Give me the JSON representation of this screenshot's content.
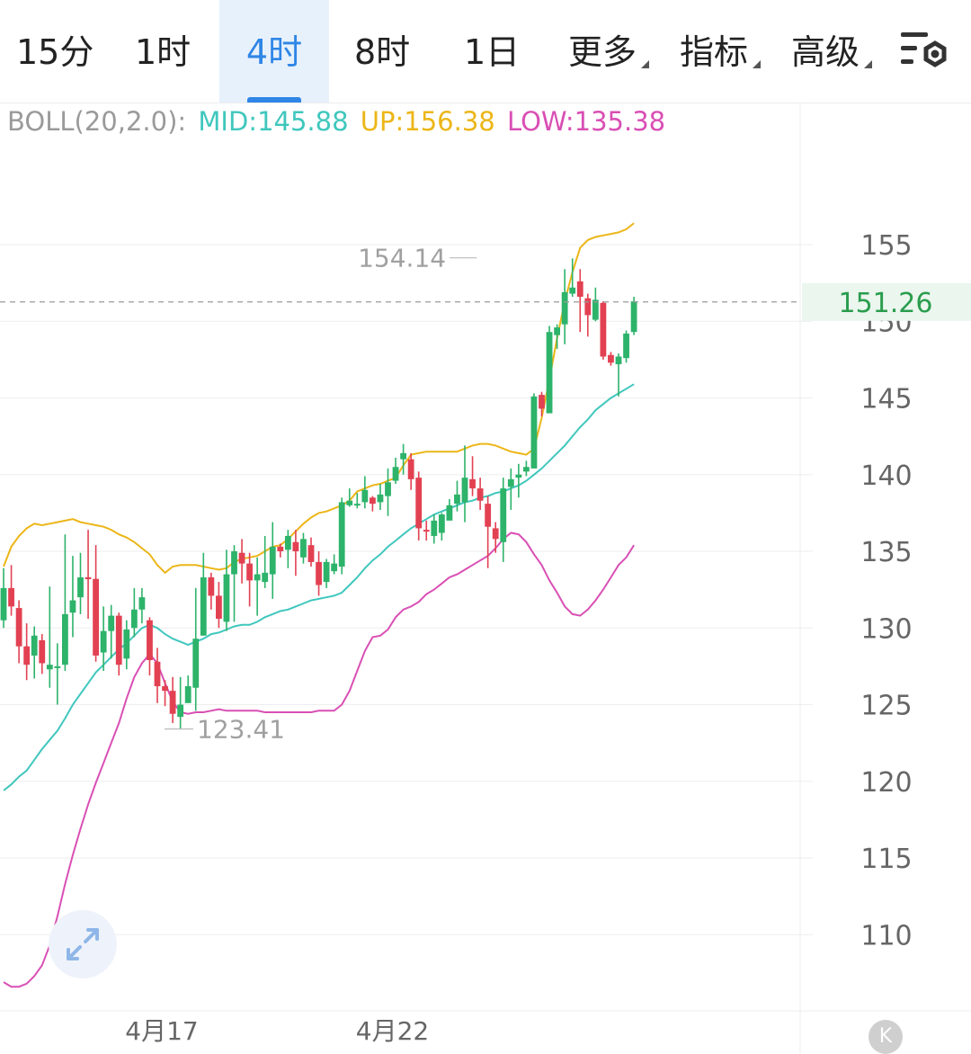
{
  "tabs": [
    {
      "label": "15分",
      "active": false,
      "dropdown": false
    },
    {
      "label": "1时",
      "active": false,
      "dropdown": false
    },
    {
      "label": "4时",
      "active": true,
      "dropdown": false
    },
    {
      "label": "8时",
      "active": false,
      "dropdown": false
    },
    {
      "label": "1日",
      "active": false,
      "dropdown": false
    },
    {
      "label": "更多",
      "active": false,
      "dropdown": true
    },
    {
      "label": "指标",
      "active": false,
      "dropdown": true
    },
    {
      "label": "高级",
      "active": false,
      "dropdown": true
    }
  ],
  "icons": {
    "settings": "chart-settings-icon",
    "expand": "expand-arrows-icon",
    "collapse": "k-circle-icon"
  },
  "indicator": {
    "name": "BOLL(20,2.0):",
    "mid": "MID:145.88",
    "up": "UP:156.38",
    "low": "LOW:135.38"
  },
  "colors": {
    "up_candle": "#2db36a",
    "down_candle": "#e24152",
    "mid": "#3fc7bd",
    "upper": "#ecb618",
    "lower": "#d94fb4",
    "accent": "#2f86e6",
    "price_label": "#2a9d4e"
  },
  "current_price": "151.26",
  "collapse_button": "K",
  "chart_data": {
    "type": "candlestick",
    "timeframe": "4时",
    "ylim": [
      105,
      158
    ],
    "yticks": [
      110,
      115,
      120,
      125,
      130,
      135,
      140,
      145,
      150,
      155
    ],
    "x_labels": [
      {
        "index": 20,
        "label": "4月17"
      },
      {
        "index": 50,
        "label": "4月22"
      }
    ],
    "max_annotation": {
      "index": 62,
      "value": 154.14,
      "label": "154.14"
    },
    "min_annotation": {
      "index": 20,
      "value": 123.41,
      "label": "123.41"
    },
    "last_price": 151.26,
    "candles": [
      [
        130.5,
        132.6,
        133.9,
        130.0
      ],
      [
        132.6,
        131.4,
        134.1,
        130.8
      ],
      [
        131.3,
        128.8,
        131.8,
        127.7
      ],
      [
        128.8,
        127.6,
        130.3,
        126.6
      ],
      [
        128.2,
        129.5,
        130.1,
        126.7
      ],
      [
        129.2,
        127.7,
        129.6,
        127.0
      ],
      [
        127.3,
        127.6,
        132.7,
        126.1
      ],
      [
        127.5,
        127.5,
        129.0,
        125.0
      ],
      [
        127.6,
        130.9,
        136.1,
        127.2
      ],
      [
        131.0,
        131.8,
        134.7,
        129.4
      ],
      [
        132.0,
        133.3,
        134.9,
        130.9
      ],
      [
        133.3,
        133.2,
        136.4,
        130.6
      ],
      [
        133.2,
        128.2,
        135.4,
        127.8
      ],
      [
        128.4,
        129.8,
        131.4,
        127.2
      ],
      [
        129.8,
        130.8,
        131.5,
        128.0
      ],
      [
        130.8,
        127.6,
        131.0,
        126.9
      ],
      [
        128.0,
        129.9,
        130.5,
        127.3
      ],
      [
        130.0,
        131.2,
        132.6,
        129.4
      ],
      [
        131.2,
        132.0,
        132.6,
        130.3
      ],
      [
        130.5,
        127.9,
        130.7,
        126.9
      ],
      [
        127.8,
        126.2,
        128.7,
        125.1
      ],
      [
        126.2,
        125.9,
        126.6,
        124.9
      ],
      [
        125.9,
        124.4,
        126.8,
        123.8
      ],
      [
        124.2,
        125.0,
        126.8,
        123.4
      ],
      [
        125.1,
        126.2,
        126.9,
        125.2
      ],
      [
        126.1,
        129.3,
        132.6,
        124.6
      ],
      [
        129.5,
        133.3,
        134.9,
        129.5
      ],
      [
        133.3,
        132.1,
        133.6,
        131.2
      ],
      [
        132.1,
        130.6,
        133.0,
        130.0
      ],
      [
        130.4,
        133.5,
        135.1,
        129.8
      ],
      [
        133.5,
        135.0,
        135.4,
        130.4
      ],
      [
        134.9,
        134.2,
        135.8,
        132.9
      ],
      [
        134.2,
        133.1,
        134.9,
        131.4
      ],
      [
        133.1,
        133.5,
        134.6,
        130.8
      ],
      [
        133.0,
        133.6,
        136.0,
        132.6
      ],
      [
        133.5,
        135.3,
        136.9,
        131.9
      ],
      [
        135.3,
        135.0,
        135.5,
        134.6
      ],
      [
        135.1,
        136.0,
        136.4,
        133.9
      ],
      [
        135.6,
        135.0,
        136.4,
        133.4
      ],
      [
        134.6,
        135.8,
        136.2,
        134.2
      ],
      [
        135.4,
        134.3,
        135.9,
        134.0
      ],
      [
        134.3,
        132.8,
        135.0,
        132.1
      ],
      [
        133.0,
        134.3,
        134.5,
        132.6
      ],
      [
        133.7,
        134.2,
        134.8,
        133.5
      ],
      [
        134.0,
        138.2,
        138.5,
        133.5
      ],
      [
        138.0,
        138.3,
        139.1,
        137.9
      ],
      [
        138.1,
        138.1,
        138.8,
        137.8
      ],
      [
        138.2,
        139.0,
        139.9,
        137.8
      ],
      [
        138.5,
        138.1,
        138.6,
        137.6
      ],
      [
        138.2,
        138.7,
        139.4,
        137.7
      ],
      [
        138.6,
        139.5,
        140.4,
        137.3
      ],
      [
        139.6,
        140.5,
        141.1,
        139.4
      ],
      [
        141.0,
        141.4,
        142.0,
        140.0
      ],
      [
        141.0,
        139.7,
        141.4,
        139.0
      ],
      [
        139.8,
        136.5,
        140.2,
        135.7
      ],
      [
        136.4,
        136.3,
        137.0,
        135.7
      ],
      [
        136.0,
        137.0,
        137.4,
        135.5
      ],
      [
        136.2,
        137.4,
        137.5,
        135.7
      ],
      [
        137.0,
        138.0,
        138.4,
        137.1
      ],
      [
        138.1,
        138.7,
        139.6,
        137.6
      ],
      [
        138.2,
        139.8,
        141.9,
        136.9
      ],
      [
        139.7,
        139.1,
        141.2,
        138.6
      ],
      [
        139.1,
        138.3,
        139.8,
        137.7
      ],
      [
        138.1,
        136.6,
        138.6,
        133.9
      ],
      [
        136.5,
        135.8,
        136.9,
        134.9
      ],
      [
        135.6,
        139.1,
        139.8,
        134.3
      ],
      [
        139.2,
        139.7,
        140.4,
        137.7
      ],
      [
        139.8,
        140.0,
        140.7,
        138.5
      ],
      [
        140.2,
        140.5,
        140.9,
        139.9
      ],
      [
        140.4,
        145.1,
        145.3,
        140.8
      ],
      [
        145.2,
        144.3,
        145.4,
        143.8
      ],
      [
        144.0,
        149.3,
        149.7,
        144.2
      ],
      [
        149.1,
        149.6,
        149.8,
        148.2
      ],
      [
        149.8,
        151.9,
        153.4,
        148.5
      ],
      [
        151.8,
        152.2,
        154.1,
        151.6
      ],
      [
        152.6,
        151.6,
        153.4,
        149.3
      ],
      [
        151.5,
        150.4,
        151.8,
        149.0
      ],
      [
        150.1,
        151.4,
        152.2,
        150.0
      ],
      [
        151.2,
        147.7,
        151.3,
        147.5
      ],
      [
        147.8,
        147.3,
        148.0,
        147.1
      ],
      [
        147.2,
        147.7,
        147.9,
        145.1
      ],
      [
        147.6,
        149.2,
        149.4,
        147.3
      ],
      [
        149.3,
        151.3,
        151.6,
        149.1
      ]
    ],
    "upper": [
      134.0,
      135.3,
      136.0,
      136.5,
      136.8,
      136.7,
      136.8,
      136.9,
      137.0,
      137.1,
      136.9,
      136.8,
      136.7,
      136.6,
      136.4,
      136.1,
      135.9,
      135.6,
      135.2,
      134.8,
      134.1,
      133.6,
      134.0,
      134.1,
      134.1,
      134.1,
      134.0,
      133.9,
      133.8,
      133.9,
      134.3,
      134.5,
      134.6,
      134.7,
      135.0,
      135.3,
      135.4,
      135.8,
      136.3,
      136.8,
      137.2,
      137.5,
      137.6,
      137.8,
      138.0,
      138.3,
      138.9,
      139.1,
      139.3,
      139.4,
      139.6,
      139.8,
      140.6,
      141.3,
      141.4,
      141.5,
      141.5,
      141.5,
      141.5,
      141.5,
      141.7,
      141.9,
      142.0,
      142.0,
      141.9,
      141.7,
      141.5,
      141.4,
      141.3,
      141.7,
      143.7,
      146.2,
      148.9,
      151.3,
      153.2,
      154.8,
      155.3,
      155.5,
      155.6,
      155.7,
      155.8,
      156.0,
      156.4
    ],
    "mid": [
      119.4,
      119.8,
      120.3,
      120.7,
      121.4,
      122.1,
      122.7,
      123.3,
      124.1,
      125.0,
      125.7,
      126.4,
      127.1,
      127.6,
      128.1,
      128.6,
      129.0,
      129.5,
      130.0,
      130.2,
      130.0,
      129.6,
      129.3,
      129.1,
      128.9,
      129.1,
      129.3,
      129.6,
      129.7,
      129.9,
      130.1,
      130.2,
      130.2,
      130.4,
      130.7,
      130.9,
      131.1,
      131.2,
      131.4,
      131.6,
      131.8,
      131.9,
      132.0,
      132.1,
      132.3,
      132.8,
      133.3,
      133.9,
      134.4,
      134.8,
      135.3,
      135.7,
      136.1,
      136.5,
      136.8,
      137.1,
      137.4,
      137.6,
      137.8,
      138.0,
      138.2,
      138.3,
      138.5,
      138.6,
      138.8,
      138.9,
      139.1,
      139.3,
      139.6,
      140.0,
      140.4,
      140.9,
      141.4,
      141.9,
      142.5,
      143.1,
      143.6,
      144.2,
      144.6,
      145.0,
      145.3,
      145.6,
      145.9
    ],
    "lower": [
      106.9,
      106.6,
      106.6,
      106.8,
      107.3,
      108.0,
      109.3,
      111.2,
      113.3,
      115.2,
      116.9,
      118.5,
      119.9,
      121.2,
      122.5,
      123.8,
      125.4,
      126.8,
      127.7,
      128.3,
      127.7,
      126.4,
      125.2,
      124.5,
      124.4,
      124.5,
      124.5,
      124.6,
      124.7,
      124.6,
      124.6,
      124.6,
      124.6,
      124.6,
      124.5,
      124.5,
      124.5,
      124.5,
      124.5,
      124.5,
      124.5,
      124.6,
      124.6,
      124.6,
      125.0,
      125.9,
      127.2,
      128.5,
      129.4,
      129.5,
      129.9,
      130.7,
      131.2,
      131.4,
      131.7,
      132.2,
      132.5,
      132.9,
      133.3,
      133.5,
      133.8,
      134.1,
      134.4,
      134.7,
      135.2,
      135.8,
      136.2,
      136.1,
      135.6,
      134.8,
      134.1,
      133.1,
      132.3,
      131.4,
      130.9,
      130.8,
      131.2,
      131.8,
      132.5,
      133.3,
      134.1,
      134.6,
      135.4
    ]
  }
}
